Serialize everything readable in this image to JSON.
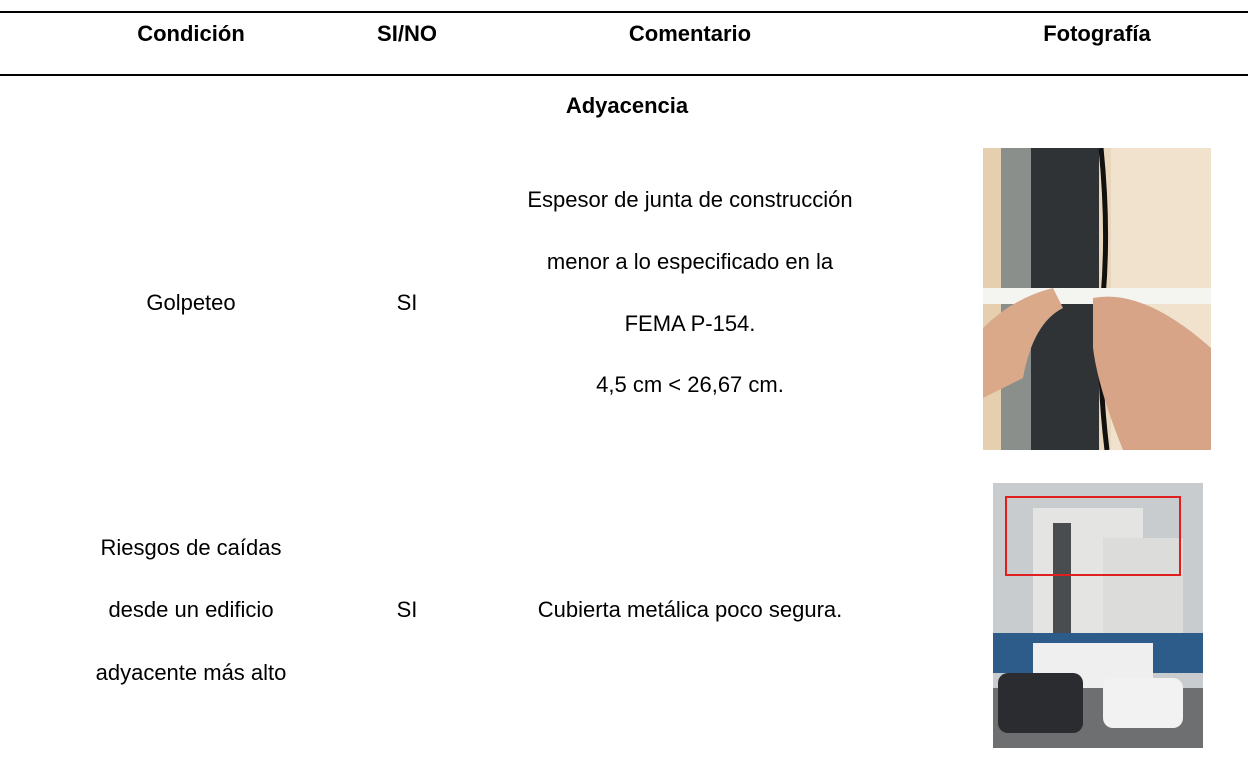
{
  "table": {
    "header": [
      "Condición",
      "SI/NO",
      "Comentario",
      "Fotografía"
    ],
    "section": "Adyacencia",
    "rows": [
      {
        "condition": [
          "Golpeteo"
        ],
        "answer": "SI",
        "comment": [
          "Espesor de junta de construcción",
          "menor a lo especificado en la",
          "FEMA P-154.",
          "4,5 cm < 26,67 cm."
        ]
      },
      {
        "condition": [
          "Riesgos de caídas",
          "desde un edificio",
          "adyacente más alto"
        ],
        "answer": "SI",
        "comment": [
          "Cubierta metálica poco segura."
        ]
      }
    ]
  }
}
